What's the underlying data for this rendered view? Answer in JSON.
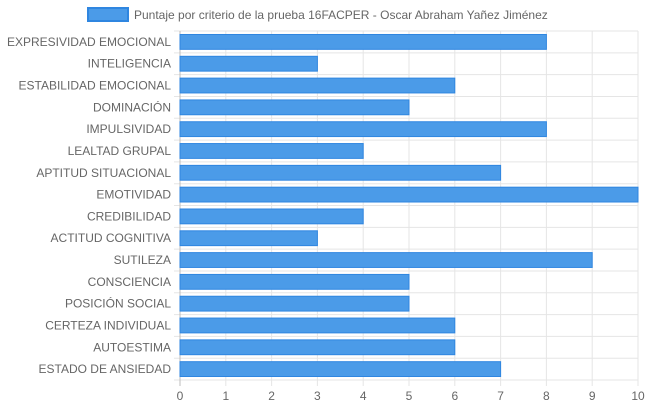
{
  "chart_data": {
    "type": "bar",
    "orientation": "horizontal",
    "categories": [
      "EXPRESIVIDAD EMOCIONAL",
      "INTELIGENCIA",
      "ESTABILIDAD EMOCIONAL",
      "DOMINACIÓN",
      "IMPULSIVIDAD",
      "LEALTAD GRUPAL",
      "APTITUD SITUACIONAL",
      "EMOTIVIDAD",
      "CREDIBILIDAD",
      "ACTITUD COGNITIVA",
      "SUTILEZA",
      "CONSCIENCIA",
      "POSICIÓN SOCIAL",
      "CERTEZA INDIVIDUAL",
      "AUTOESTIMA",
      "ESTADO DE ANSIEDAD"
    ],
    "series": [
      {
        "name": "Puntaje por criterio de la prueba 16FACPER - Oscar Abraham Yañez Jiménez",
        "values": [
          8,
          3,
          6,
          5,
          8,
          4,
          7,
          10,
          4,
          3,
          9,
          5,
          5,
          6,
          6,
          7
        ]
      }
    ],
    "xlim": [
      0,
      10
    ],
    "x_ticks": [
      "0",
      "1",
      "2",
      "3",
      "4",
      "5",
      "6",
      "7",
      "8",
      "9",
      "10"
    ],
    "grid": true,
    "legend_position": "top",
    "colors": {
      "bar_fill": "#4b9be8",
      "bar_border": "#2f86e0",
      "grid": "#e5e5e5",
      "text": "#666666"
    }
  }
}
